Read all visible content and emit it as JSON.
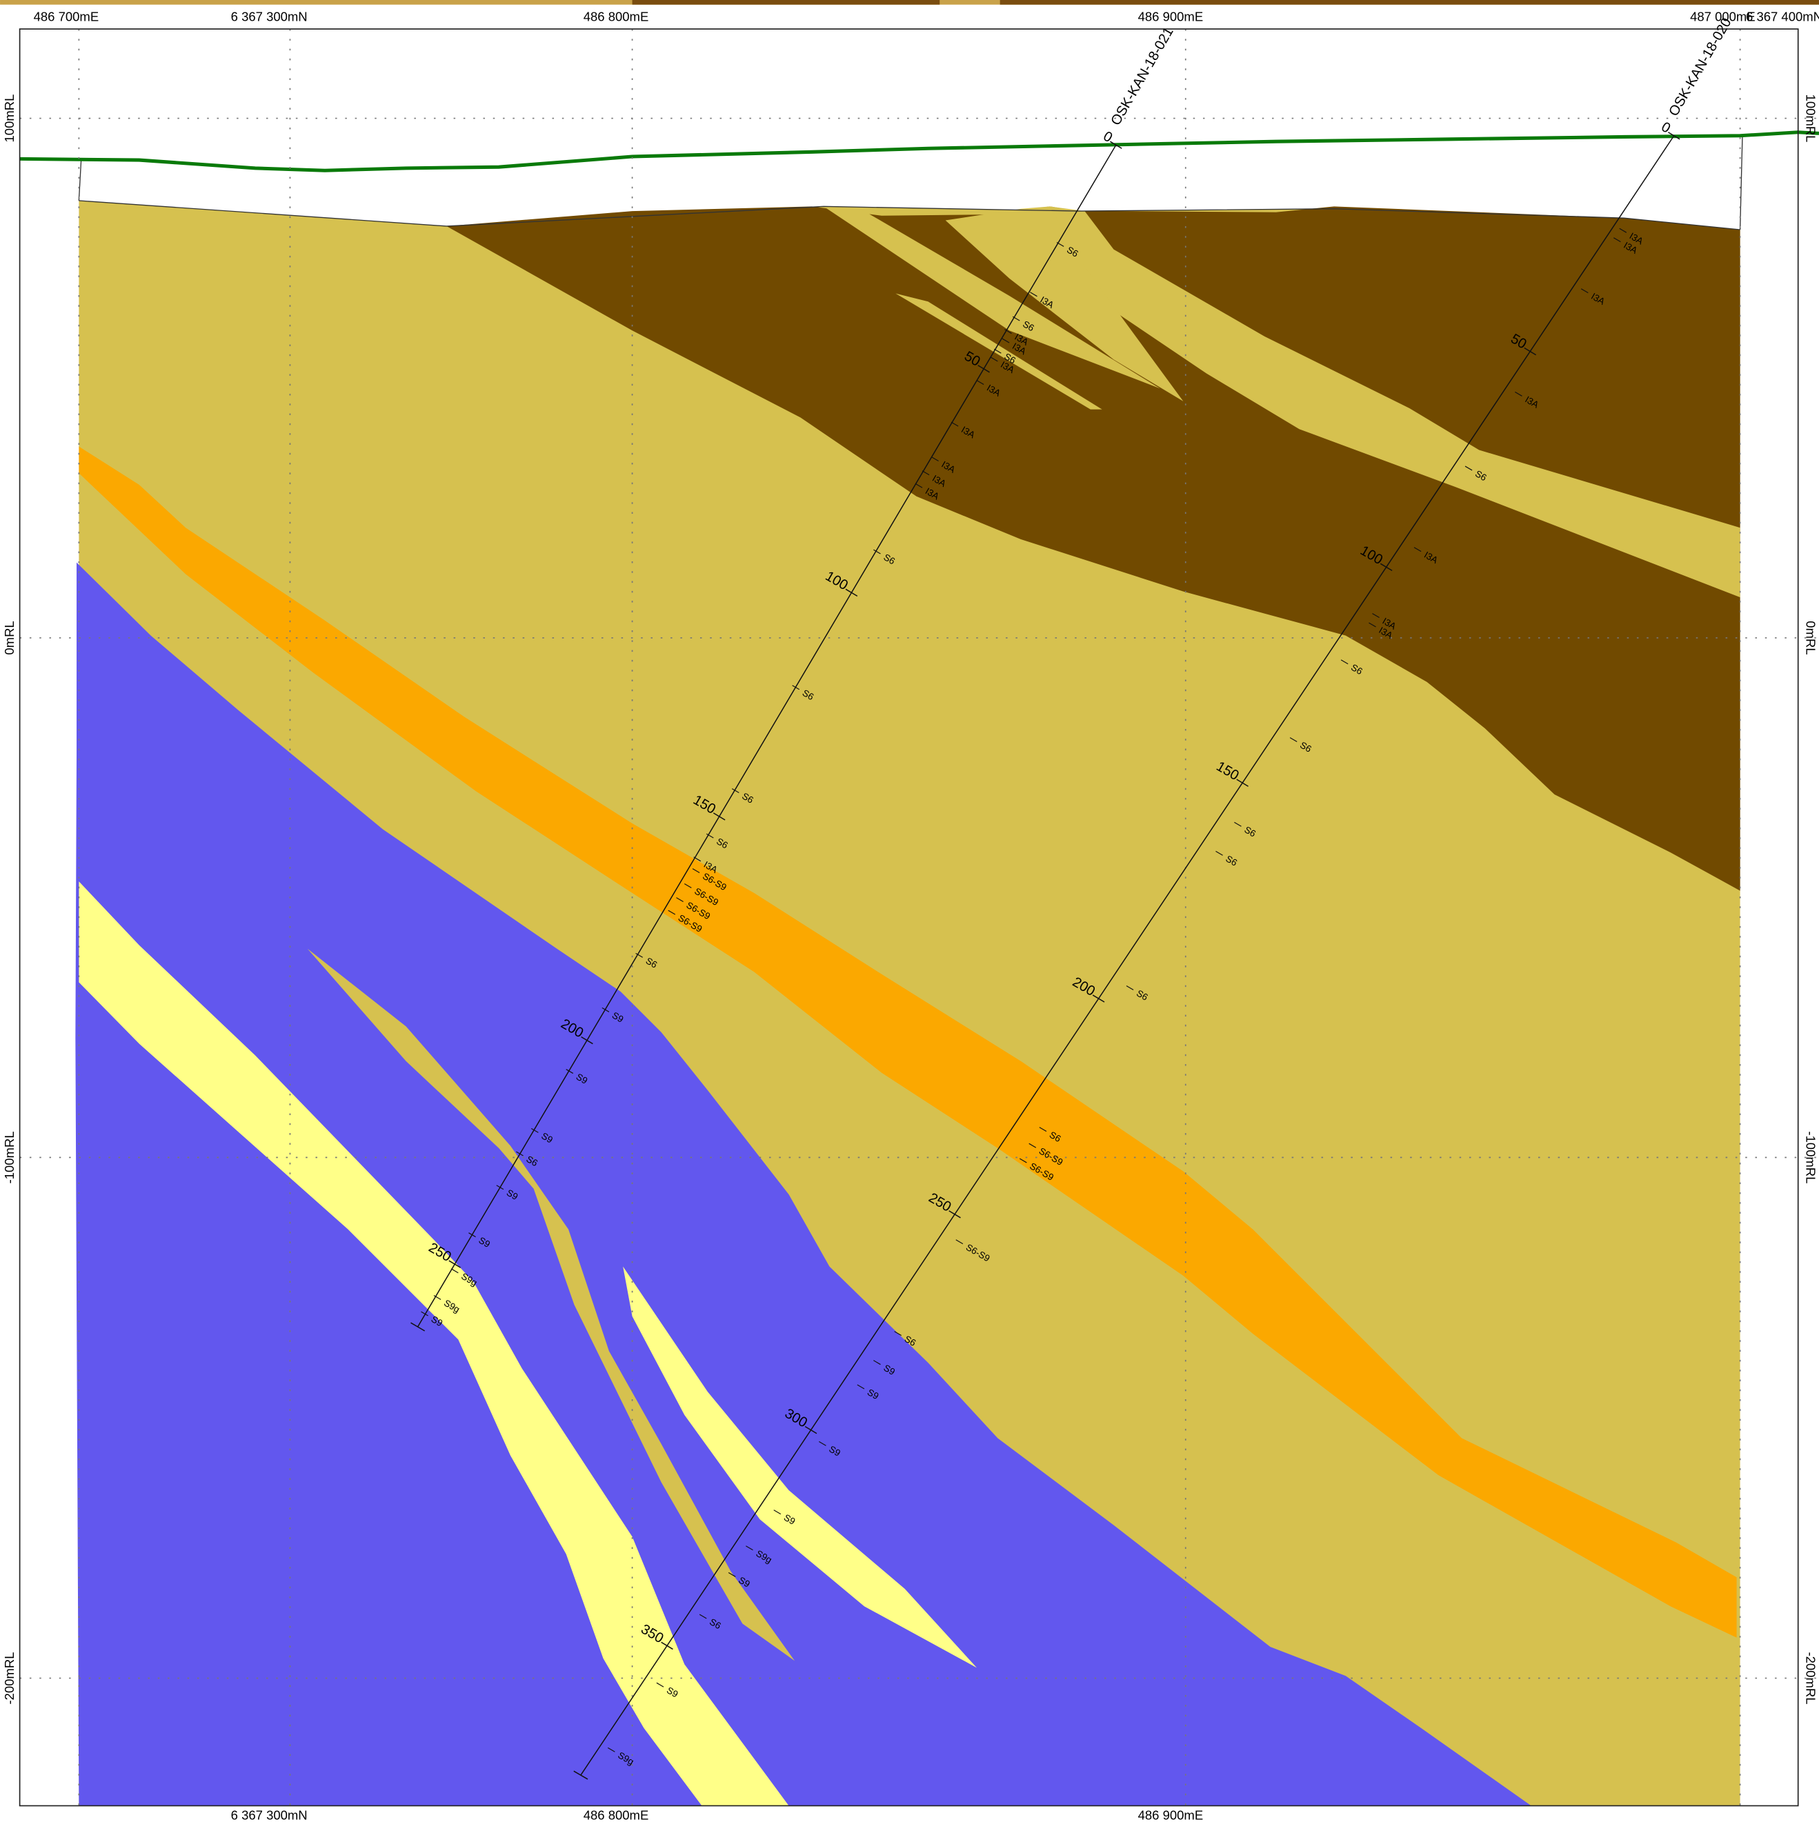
{
  "grid_labels": {
    "top": [
      "486 700mE",
      "6 367 300mN",
      "486 800mE",
      "486 900mE",
      "487 000mE",
      "6 367 400mN"
    ],
    "bottom": [
      "6 367 300mN",
      "486 800mE",
      "486 900mE"
    ],
    "left": [
      "100mRL",
      "0mRL",
      "-100mRL",
      "-200mRL"
    ],
    "right": [
      "100mRL",
      "0mRL",
      "-100mRL",
      "-200mRL"
    ]
  },
  "holes": [
    {
      "name": "OSK-KAN-18-021",
      "depth_labels": [
        0,
        50,
        100,
        150,
        200,
        250
      ],
      "lithology": [
        "S6",
        "I3A",
        "S6",
        "I3A",
        "I3A",
        "S6",
        "I3A",
        "I3A",
        "I3A",
        "I3A",
        "I3A",
        "I3A",
        "S6",
        "S6",
        "S6",
        "S6",
        "I3A",
        "S6-S9",
        "S6-S9",
        "S6-S9",
        "S6-S9",
        "S6",
        "S9",
        "S9",
        "S9",
        "S6",
        "S9",
        "S9",
        "S9g",
        "S9g",
        "S9"
      ]
    },
    {
      "name": "OSK-KAN-18-020",
      "depth_labels": [
        0,
        50,
        100,
        150,
        200,
        250,
        300,
        350
      ],
      "lithology": [
        "I3A",
        "I3A",
        "I3A",
        "I3A",
        "S6",
        "I3A",
        "I3A",
        "I3A",
        "S6",
        "S6",
        "S6",
        "S6",
        "S6",
        "S6",
        "S6-S9",
        "S6-S9",
        "S6-S9",
        "S6",
        "S9",
        "S9",
        "S9",
        "S9",
        "S9g",
        "S9",
        "S6",
        "S9",
        "S9g",
        "S9"
      ]
    }
  ]
}
